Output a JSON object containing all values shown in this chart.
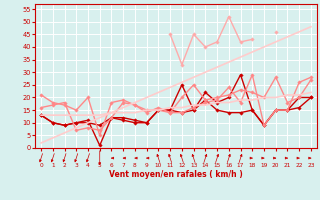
{
  "xlabel": "Vent moyen/en rafales ( km/h )",
  "bg_color": "#d8f0ee",
  "grid_color": "#ffffff",
  "x_values": [
    0,
    1,
    2,
    3,
    4,
    5,
    6,
    7,
    8,
    9,
    10,
    11,
    12,
    13,
    14,
    15,
    16,
    17,
    18,
    19,
    20,
    21,
    22,
    23
  ],
  "lines": [
    {
      "y": [
        13,
        10,
        9,
        10,
        11,
        1,
        12,
        12,
        11,
        10,
        15,
        15,
        14,
        15,
        19,
        15,
        14,
        14,
        15,
        9,
        15,
        15,
        16,
        20
      ],
      "color": "#cc0000",
      "lw": 1.0,
      "marker": "D",
      "ms": 1.8
    },
    {
      "y": [
        13,
        10,
        9,
        10,
        10,
        9,
        12,
        11,
        10,
        10,
        15,
        15,
        25,
        15,
        22,
        18,
        20,
        29,
        15,
        9,
        15,
        15,
        20,
        20
      ],
      "color": "#cc0000",
      "lw": 1.0,
      "marker": "D",
      "ms": 1.8
    },
    {
      "y": [
        16,
        17,
        18,
        7,
        8,
        7,
        12,
        18,
        17,
        14,
        16,
        14,
        14,
        16,
        18,
        19,
        24,
        18,
        29,
        9,
        15,
        15,
        26,
        28
      ],
      "color": "#ff8888",
      "lw": 1.0,
      "marker": "D",
      "ms": 1.8
    },
    {
      "y": [
        21,
        18,
        17,
        15,
        20,
        5,
        18,
        19,
        17,
        15,
        15,
        14,
        20,
        25,
        19,
        20,
        21,
        23,
        22,
        20,
        28,
        18,
        20,
        27
      ],
      "color": "#ff8888",
      "lw": 1.0,
      "marker": "D",
      "ms": 1.8
    },
    {
      "y": [
        null,
        null,
        null,
        null,
        null,
        null,
        null,
        null,
        null,
        null,
        null,
        45,
        33,
        45,
        40,
        42,
        52,
        42,
        43,
        null,
        46,
        null,
        null,
        null
      ],
      "color": "#ffaaaa",
      "lw": 1.0,
      "marker": "D",
      "ms": 1.8
    },
    {
      "y": [
        2,
        4,
        6,
        8,
        10,
        12,
        14,
        16,
        18,
        20,
        22,
        24,
        26,
        28,
        30,
        32,
        34,
        36,
        38,
        40,
        42,
        44,
        46,
        48
      ],
      "color": "#ffcccc",
      "lw": 1.2,
      "marker": null,
      "ms": 0
    },
    {
      "y": [
        13,
        13,
        13,
        13,
        13,
        13,
        14,
        14,
        14,
        15,
        15,
        16,
        16,
        17,
        17,
        18,
        18,
        19,
        19,
        20,
        20,
        21,
        21,
        22
      ],
      "color": "#ffcccc",
      "lw": 1.2,
      "marker": null,
      "ms": 0
    }
  ],
  "xlim": [
    -0.5,
    23.5
  ],
  "ylim": [
    0,
    57
  ],
  "yticks": [
    0,
    5,
    10,
    15,
    20,
    25,
    30,
    35,
    40,
    45,
    50,
    55
  ],
  "xticks": [
    0,
    1,
    2,
    3,
    4,
    5,
    6,
    7,
    8,
    9,
    10,
    11,
    12,
    13,
    14,
    15,
    16,
    17,
    18,
    19,
    20,
    21,
    22,
    23
  ],
  "wind_dirs": [
    225,
    225,
    225,
    225,
    225,
    180,
    270,
    270,
    270,
    270,
    315,
    315,
    315,
    315,
    45,
    45,
    45,
    45,
    90,
    90,
    90,
    90,
    90,
    90
  ],
  "axis_color": "#cc0000",
  "label_color": "#cc0000"
}
